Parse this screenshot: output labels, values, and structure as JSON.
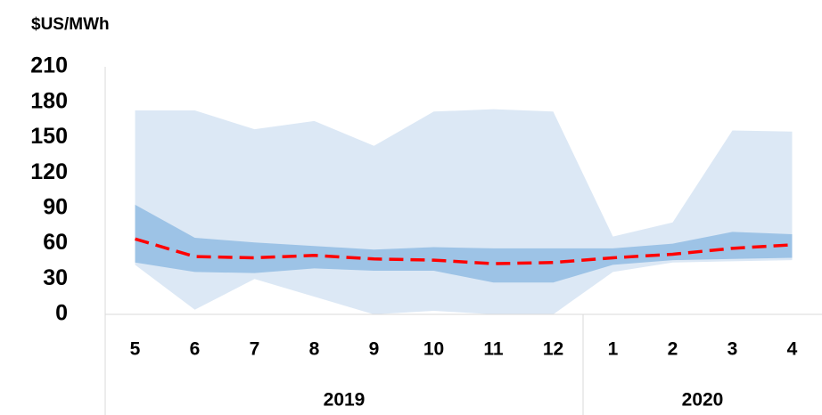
{
  "chart_data": {
    "type": "fan",
    "y_label": "$US/MWh",
    "categories": [
      "5",
      "6",
      "7",
      "8",
      "9",
      "10",
      "11",
      "12",
      "1",
      "2",
      "3",
      "4"
    ],
    "groups": [
      {
        "label": "2019",
        "span": 8
      },
      {
        "label": "2020",
        "span": 4
      }
    ],
    "bands": [
      {
        "color": "#dce8f5",
        "lower": [
          42,
          4,
          30,
          15,
          0,
          3,
          0,
          0,
          36,
          44,
          45,
          46
        ],
        "upper": [
          173,
          173,
          157,
          164,
          143,
          172,
          174,
          172,
          66,
          78,
          156,
          155
        ]
      },
      {
        "color": "#9dc3e6",
        "lower": [
          44,
          36,
          35,
          39,
          37,
          37,
          27,
          27,
          42,
          46,
          47,
          48
        ],
        "upper": [
          93,
          65,
          61,
          58,
          55,
          57,
          56,
          56,
          56,
          60,
          70,
          68
        ]
      }
    ],
    "series": [
      {
        "color": "#ff0000",
        "dashed": true,
        "values": [
          64,
          49,
          48,
          50,
          47,
          46,
          43,
          44,
          48,
          51,
          56,
          59
        ]
      }
    ],
    "ylim": [
      0,
      210
    ],
    "yticks": [
      0,
      30,
      60,
      90,
      120,
      150,
      180,
      210
    ],
    "grid": false
  }
}
